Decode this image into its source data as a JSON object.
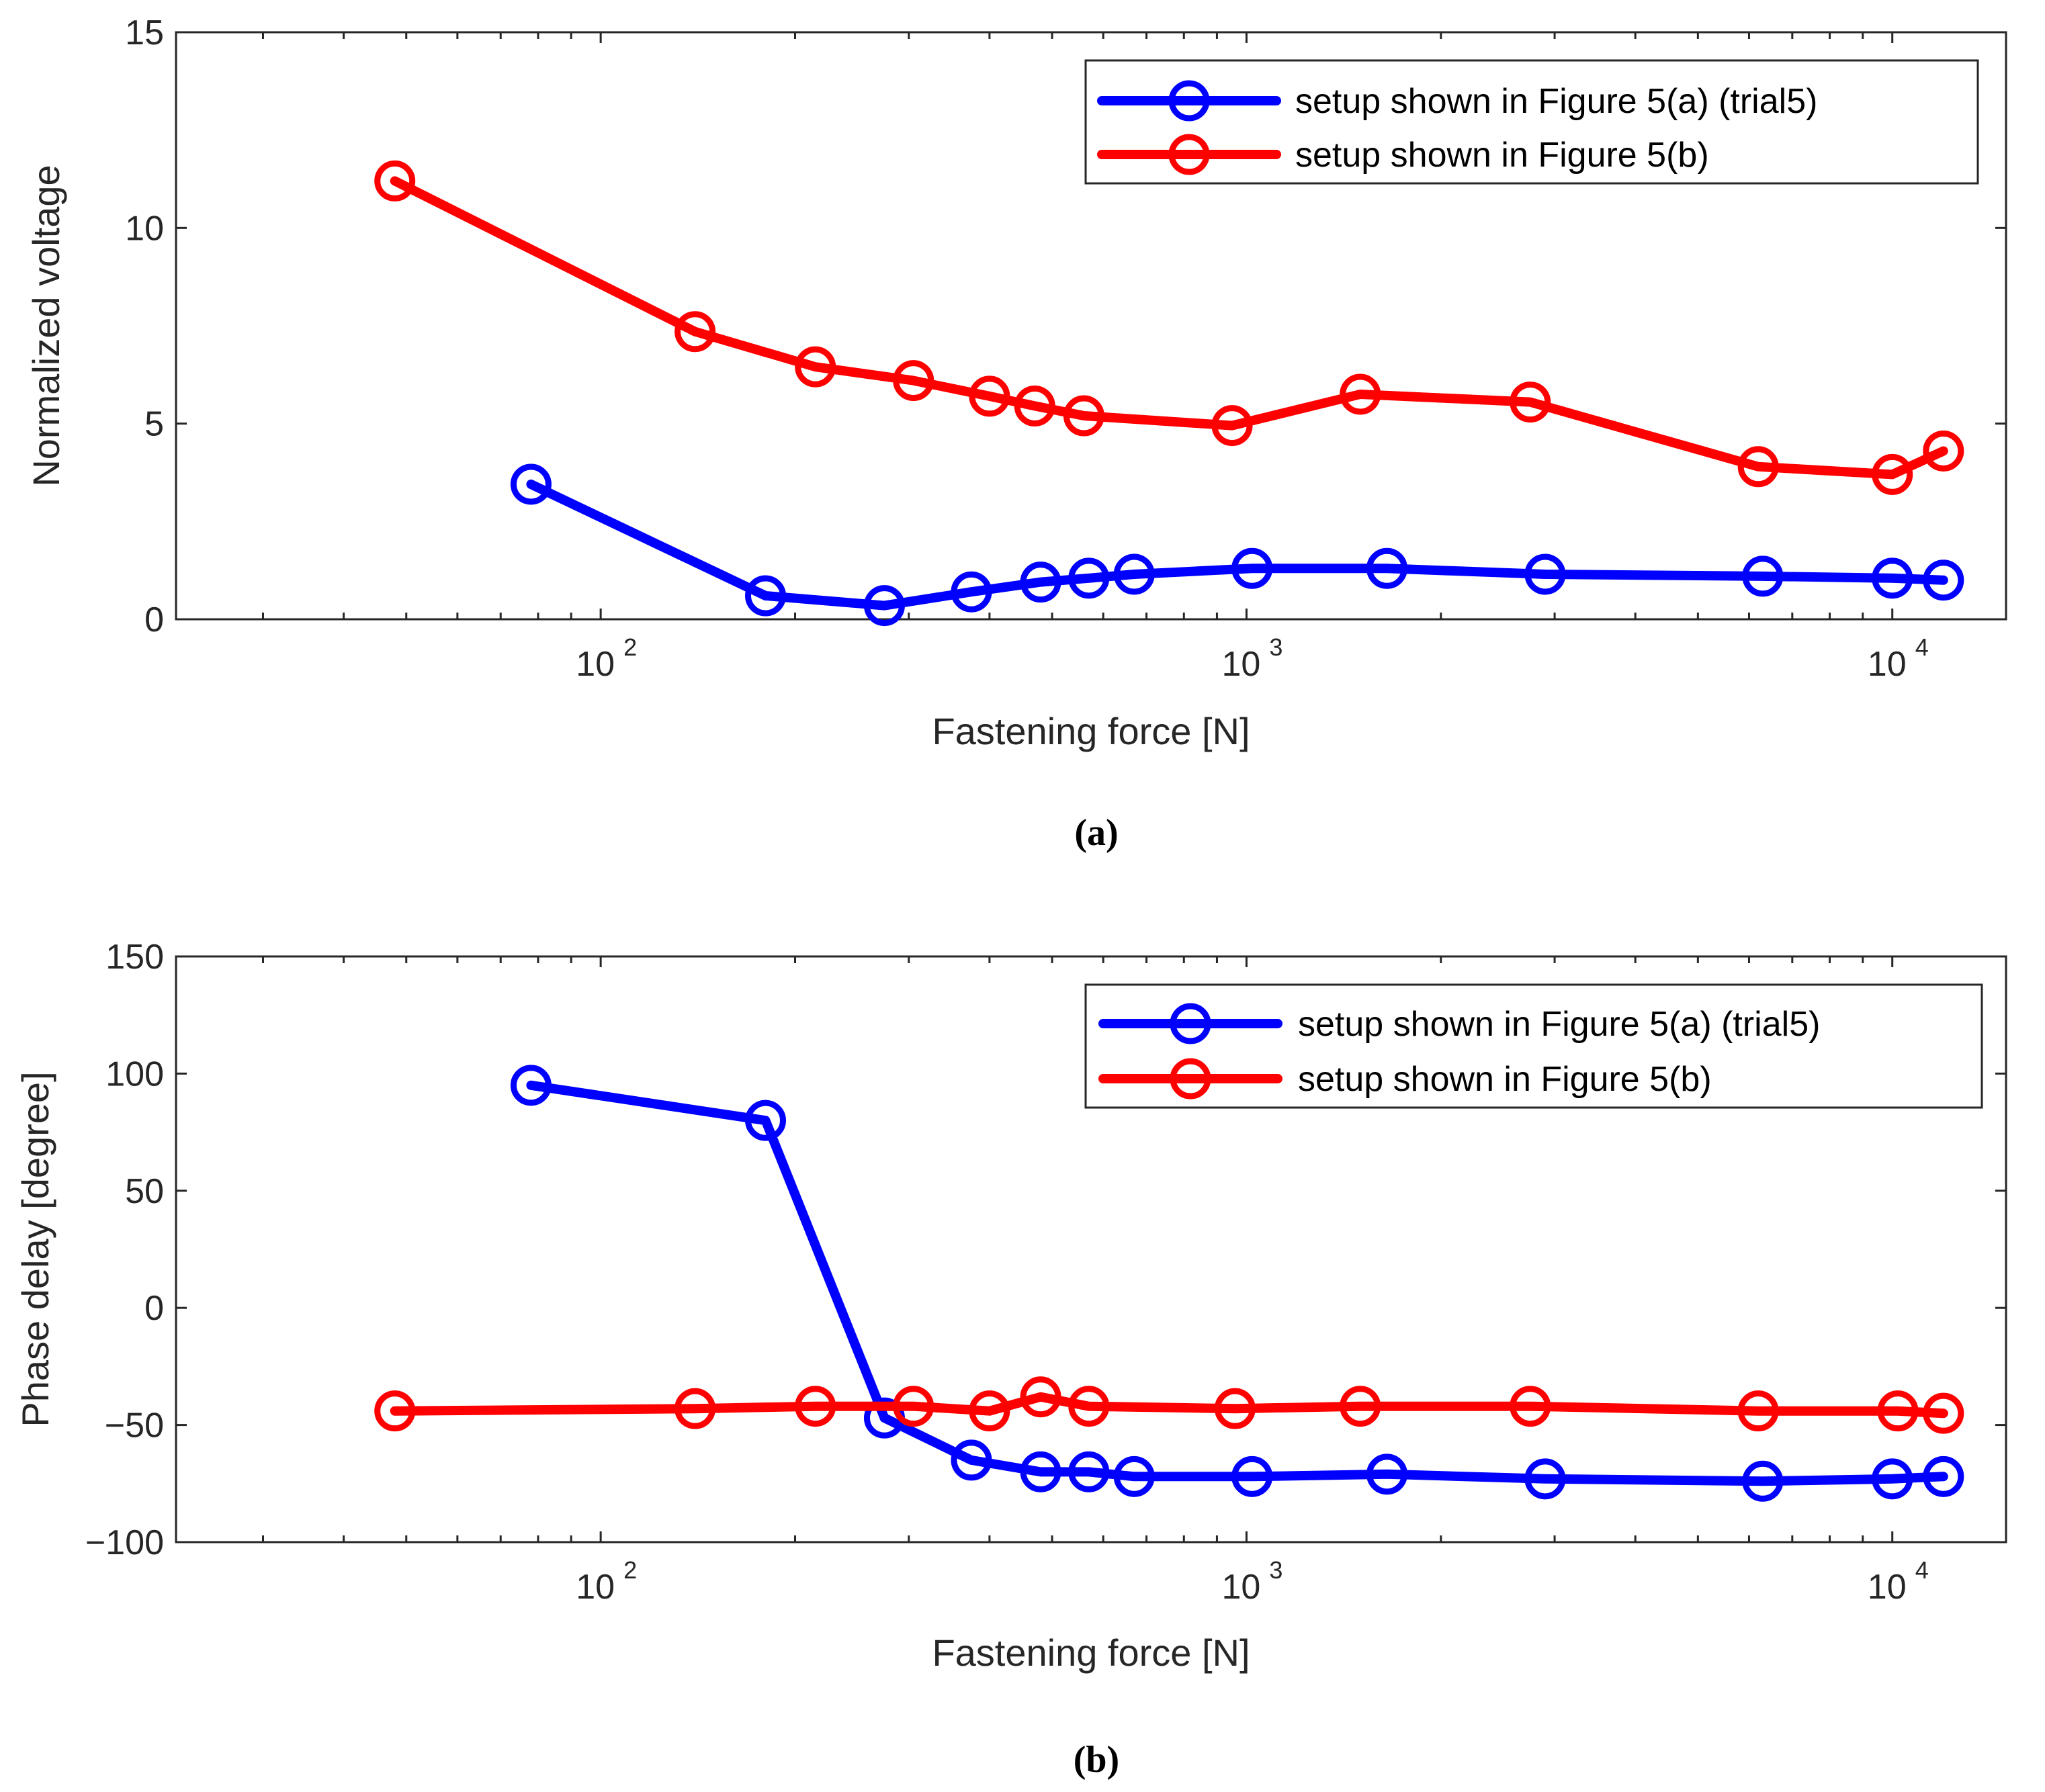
{
  "chart_data": [
    {
      "type": "line",
      "panel": "a",
      "caption": "(a)",
      "xlabel": "Fastening force [N]",
      "ylabel": "Normalized voltage",
      "xscale": "log",
      "xlim": [
        22,
        15000
      ],
      "ylim": [
        0,
        15
      ],
      "yticks": [
        0,
        5,
        10,
        15
      ],
      "xticks": [
        {
          "base": "10",
          "exp": "2",
          "value": 100
        },
        {
          "base": "10",
          "exp": "3",
          "value": 1000
        },
        {
          "base": "10",
          "exp": "4",
          "value": 10000
        }
      ],
      "legend_position": "top-right",
      "series": [
        {
          "name": "setup shown in Figure 5(a) (trial5)",
          "color": "#0000ff",
          "x": [
            78,
            180,
            275,
            375,
            480,
            570,
            670,
            1020,
            1650,
            2900,
            6300,
            10000,
            12000
          ],
          "y": [
            3.45,
            0.6,
            0.35,
            0.7,
            0.95,
            1.05,
            1.15,
            1.3,
            1.3,
            1.15,
            1.1,
            1.05,
            1.0
          ]
        },
        {
          "name": "setup shown in Figure 5(b)",
          "color": "#ff0000",
          "x": [
            48,
            140,
            215,
            305,
            400,
            470,
            560,
            950,
            1500,
            2750,
            6200,
            10000,
            12000
          ],
          "y": [
            11.2,
            7.35,
            6.45,
            6.1,
            5.7,
            5.45,
            5.2,
            4.95,
            5.75,
            5.55,
            3.9,
            3.7,
            4.3
          ]
        }
      ]
    },
    {
      "type": "line",
      "panel": "b",
      "caption": "(b)",
      "xlabel": "Fastening force [N]",
      "ylabel": "Phase delay [degree]",
      "xscale": "log",
      "xlim": [
        22,
        15000
      ],
      "ylim": [
        -100,
        150
      ],
      "yticks": [
        -100,
        -50,
        0,
        50,
        100,
        150
      ],
      "ytick_labels": [
        "−100",
        "−50",
        "0",
        "50",
        "100",
        "150"
      ],
      "xticks": [
        {
          "base": "10",
          "exp": "2",
          "value": 100
        },
        {
          "base": "10",
          "exp": "3",
          "value": 1000
        },
        {
          "base": "10",
          "exp": "4",
          "value": 10000
        }
      ],
      "legend_position": "top-right",
      "series": [
        {
          "name": "setup shown in Figure 5(a) (trial5)",
          "color": "#0000ff",
          "x": [
            78,
            180,
            275,
            375,
            480,
            570,
            670,
            1020,
            1650,
            2900,
            6300,
            10000,
            12000
          ],
          "y": [
            95,
            80,
            -47,
            -65,
            -70,
            -70,
            -72,
            -72,
            -71,
            -73,
            -74,
            -73,
            -72
          ]
        },
        {
          "name": "setup shown in Figure 5(b)",
          "color": "#ff0000",
          "x": [
            48,
            140,
            215,
            305,
            400,
            480,
            570,
            960,
            1500,
            2750,
            6200,
            10200,
            12000
          ],
          "y": [
            -44,
            -43,
            -42,
            -42,
            -44,
            -38,
            -42,
            -43,
            -42,
            -42,
            -44,
            -44,
            -45
          ]
        }
      ]
    }
  ]
}
